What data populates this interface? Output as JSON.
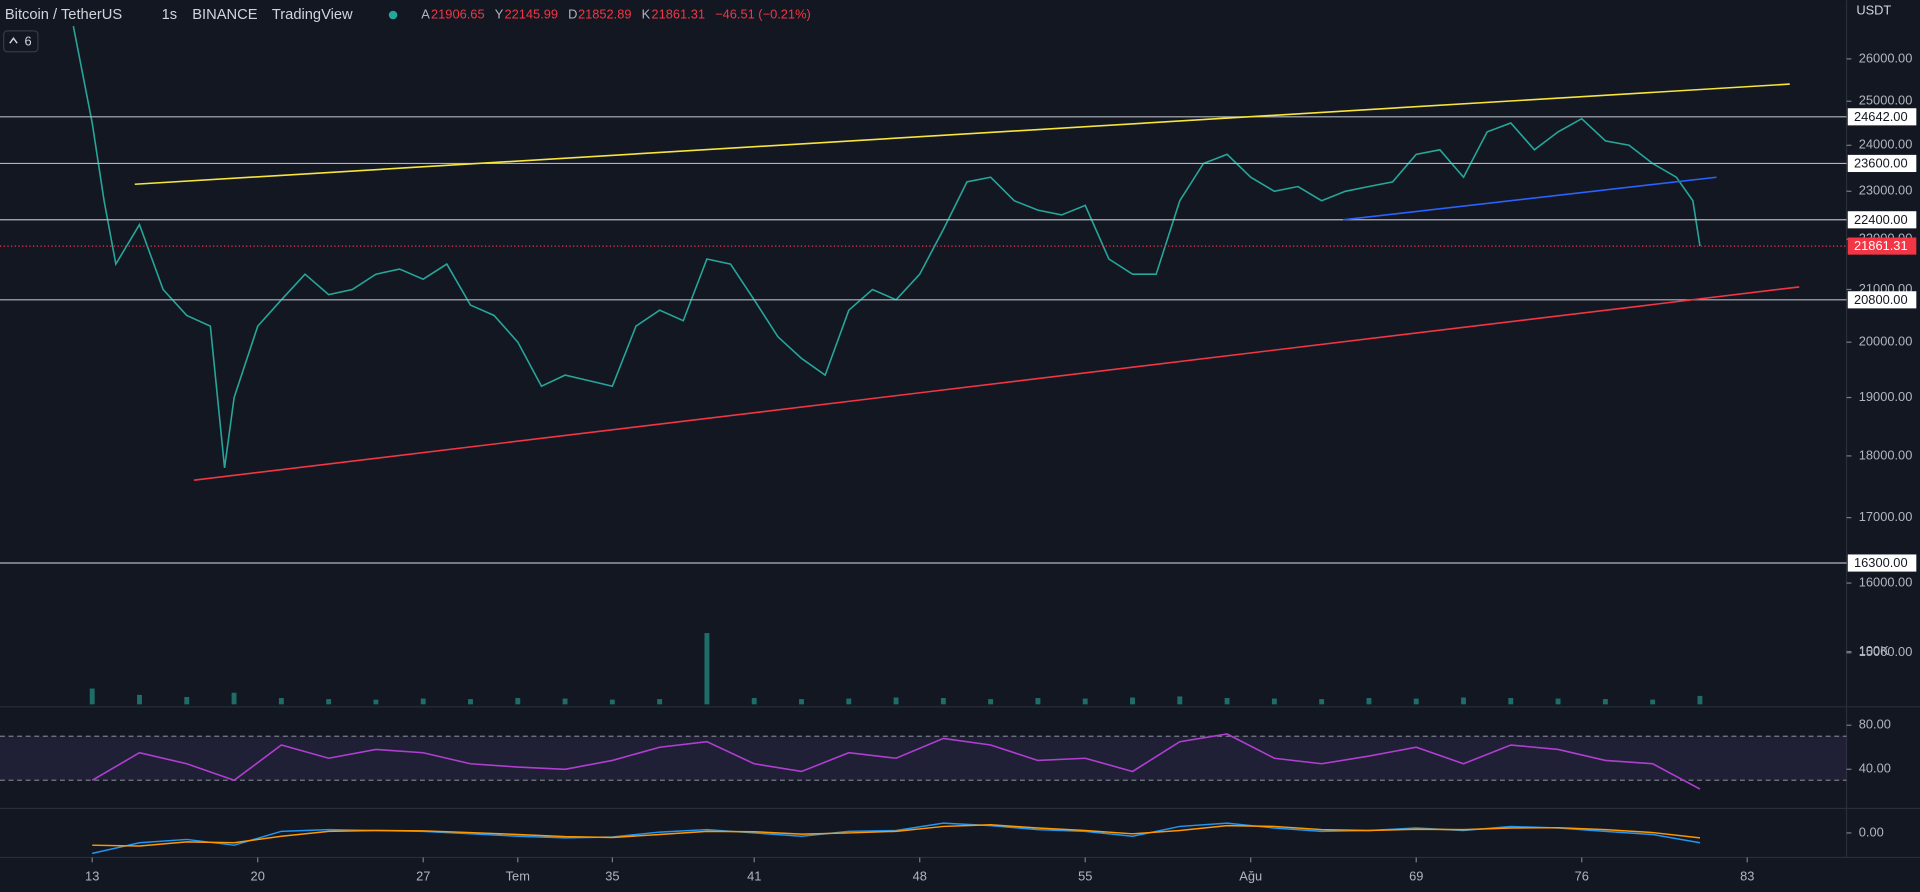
{
  "header": {
    "symbol": "Bitcoin / TetherUS",
    "interval": "1s",
    "exchange": "BINANCE",
    "source": "TradingView",
    "open_label": "A",
    "open": "21906.65",
    "high_label": "Y",
    "high": "22145.99",
    "low_label": "D",
    "low": "21852.89",
    "close_label": "K",
    "close": "21861.31",
    "change": "−46.51 (−0.21%)",
    "indicators": "6",
    "currency": "USDT"
  },
  "chart_data": [
    {
      "type": "line",
      "log_scale": true,
      "color": "#26a69a",
      "x": [
        12.2,
        13,
        13.5,
        14,
        15,
        16,
        17,
        18,
        18.6,
        19,
        20,
        21,
        22,
        23,
        24,
        25,
        26,
        27,
        28,
        29,
        30,
        31,
        32,
        33,
        34,
        35,
        36,
        37,
        38,
        39,
        40,
        41,
        42,
        43,
        44,
        45,
        46,
        47,
        48,
        49,
        50,
        51,
        52,
        53,
        54,
        55,
        56,
        57,
        58,
        59,
        60,
        61,
        62,
        63,
        64,
        65,
        66,
        67,
        68,
        69,
        70,
        71,
        72,
        73,
        74,
        75,
        76,
        77,
        78,
        79,
        80,
        80.7,
        81
      ],
      "values": [
        26800,
        24500,
        22800,
        21500,
        22300,
        21000,
        20500,
        20300,
        17800,
        19000,
        20300,
        20800,
        21300,
        20900,
        21000,
        21300,
        21400,
        21200,
        21500,
        20700,
        20500,
        20000,
        19200,
        19400,
        19300,
        19200,
        20300,
        20600,
        20400,
        21600,
        21500,
        20800,
        20100,
        19700,
        19400,
        20600,
        21000,
        20800,
        21300,
        22200,
        23200,
        23300,
        22800,
        22600,
        22500,
        22700,
        21600,
        21300,
        21300,
        22800,
        23600,
        23800,
        23300,
        23000,
        23100,
        22800,
        23000,
        23100,
        23200,
        23800,
        23900,
        23300,
        24300,
        24500,
        23900,
        24300,
        24600,
        24100,
        24000,
        23600,
        23300,
        22800,
        21861.31
      ],
      "xlim": [
        9.1,
        87.2
      ],
      "xticks": [
        13,
        20,
        27,
        {
          "value": 31,
          "label": "Tem"
        },
        35,
        41,
        48,
        55,
        {
          "value": 62,
          "label": "Ağu"
        },
        69,
        76,
        83
      ],
      "ylim": [
        14300,
        27450
      ],
      "yticks": [
        {
          "value": 15000,
          "label": "15000.00"
        },
        {
          "value": 16000,
          "label": "16000.00"
        },
        {
          "value": 17000,
          "label": "17000.00"
        },
        {
          "value": 18000,
          "label": "18000.00"
        },
        {
          "value": 19000,
          "label": "19000.00"
        },
        {
          "value": 20000,
          "label": "20000.00"
        },
        {
          "value": 21000,
          "label": "21000.00"
        },
        {
          "value": 22000,
          "label": "22000.00"
        },
        {
          "value": 23000,
          "label": "23000.00"
        },
        {
          "value": 24000,
          "label": "24000.00"
        },
        {
          "value": 25000,
          "label": "25000.00"
        },
        {
          "value": 26000,
          "label": "26000.00"
        }
      ],
      "hlines": [
        {
          "value": 24642,
          "label": "24642.00"
        },
        {
          "value": 23600,
          "label": "23600.00"
        },
        {
          "value": 22400,
          "label": "22400.00"
        },
        {
          "value": 20800,
          "label": "20800.00"
        },
        {
          "value": 16300,
          "label": "16300.00"
        }
      ],
      "last_price": {
        "value": 21861.31,
        "label": "21861.31",
        "color": "#f23645"
      },
      "trendlines": [
        {
          "color": "#f7e53b",
          "x": [
            14.8,
            84.8
          ],
          "y": [
            23150,
            25400
          ]
        },
        {
          "color": "#2962ff",
          "x": [
            65.9,
            81.7
          ],
          "y": [
            22400,
            23300
          ]
        },
        {
          "color": "#f23645",
          "x": [
            17.3,
            85.2
          ],
          "y": [
            17600,
            21050
          ]
        }
      ]
    },
    {
      "type": "bar",
      "color": "#26a69a",
      "x": [
        13,
        15,
        17,
        19,
        21,
        23,
        25,
        27,
        29,
        31,
        33,
        35,
        37,
        39,
        41,
        43,
        45,
        47,
        49,
        51,
        53,
        55,
        57,
        59,
        61,
        63,
        65,
        67,
        69,
        71,
        73,
        75,
        77,
        79,
        81
      ],
      "values": [
        30000,
        18000,
        14000,
        22000,
        12000,
        10000,
        9000,
        11000,
        10000,
        12000,
        11000,
        9000,
        10000,
        135000,
        12000,
        10000,
        11000,
        13000,
        12000,
        10000,
        12000,
        11000,
        13000,
        15000,
        12000,
        11000,
        10000,
        12000,
        11000,
        13000,
        12000,
        11000,
        10000,
        9000,
        16000
      ],
      "ylim": [
        0,
        174000
      ],
      "yticks": [
        {
          "value": 100000,
          "label": "100K"
        }
      ]
    },
    {
      "type": "line",
      "color": "#b03fd1",
      "band": [
        30,
        70
      ],
      "x": [
        13,
        15,
        17,
        19,
        21,
        23,
        25,
        27,
        29,
        31,
        33,
        35,
        37,
        39,
        41,
        43,
        45,
        47,
        49,
        51,
        53,
        55,
        57,
        59,
        61,
        63,
        65,
        67,
        69,
        71,
        73,
        75,
        77,
        79,
        81
      ],
      "values": [
        30,
        55,
        45,
        30,
        62,
        50,
        58,
        55,
        45,
        42,
        40,
        48,
        60,
        65,
        45,
        38,
        55,
        50,
        68,
        62,
        48,
        50,
        38,
        65,
        72,
        50,
        45,
        52,
        60,
        45,
        62,
        58,
        48,
        45,
        22
      ],
      "ylim": [
        4.4,
        95.6
      ],
      "yticks": [
        {
          "value": 80,
          "label": "80.00"
        },
        {
          "value": 40,
          "label": "40.00"
        }
      ]
    },
    {
      "type": "multiline",
      "x": [
        13,
        15,
        17,
        19,
        21,
        23,
        25,
        27,
        29,
        31,
        33,
        35,
        37,
        39,
        41,
        43,
        45,
        47,
        49,
        51,
        53,
        55,
        57,
        59,
        61,
        63,
        65,
        67,
        69,
        71,
        73,
        75,
        77,
        79,
        81
      ],
      "series": [
        {
          "color": "#2196f3",
          "values": [
            -250,
            -120,
            -80,
            -150,
            20,
            40,
            30,
            20,
            -10,
            -40,
            -60,
            -50,
            10,
            40,
            0,
            -40,
            20,
            30,
            120,
            90,
            40,
            20,
            -40,
            80,
            120,
            60,
            20,
            30,
            60,
            30,
            80,
            60,
            20,
            -20,
            -120
          ]
        },
        {
          "color": "#ff9800",
          "values": [
            -150,
            -160,
            -110,
            -120,
            -40,
            20,
            30,
            25,
            5,
            -20,
            -45,
            -55,
            -20,
            20,
            15,
            -15,
            0,
            20,
            80,
            100,
            60,
            30,
            -10,
            30,
            90,
            80,
            40,
            30,
            45,
            40,
            60,
            65,
            40,
            5,
            -60
          ]
        }
      ],
      "ylim": [
        -300,
        300
      ],
      "yticks": [
        {
          "value": 0,
          "label": "0.00"
        }
      ]
    }
  ]
}
